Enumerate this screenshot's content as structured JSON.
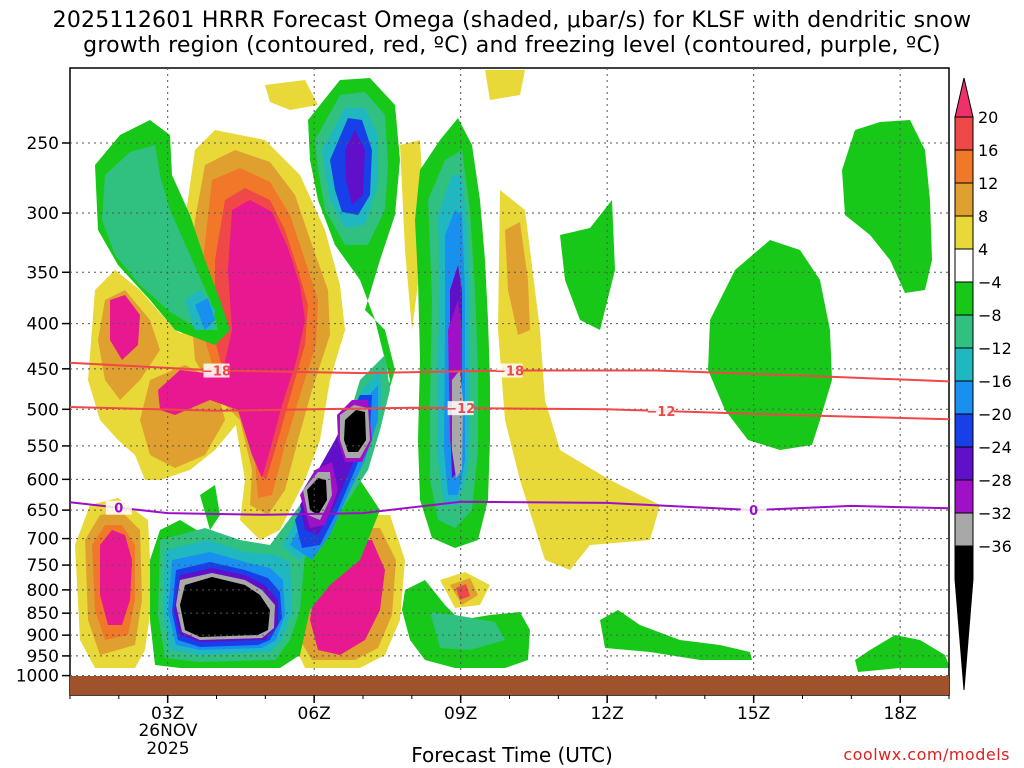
{
  "title_line1": "2025112601 HRRR Forecast Omega (shaded, μbar/s) for KLSF with dendritic snow",
  "title_line2": "growth region (contoured, red, ºC) and freezing level (contoured, purple, ºC)",
  "xlabel": "Forecast Time (UTC)",
  "credit": "coolwx.com/models",
  "date_label": [
    "26NOV",
    "2025"
  ],
  "chart_data": {
    "type": "heatmap",
    "title": "2025112601 HRRR Forecast Omega (shaded, μbar/s) for KLSF with dendritic snow growth region (contoured, red, ºC) and freezing level (contoured, purple, ºC)",
    "xlabel": "Forecast Time (UTC)",
    "ylabel": "",
    "x_ticks": [
      "03Z",
      "06Z",
      "09Z",
      "12Z",
      "15Z",
      "18Z"
    ],
    "x_tick_hours": [
      3,
      6,
      9,
      12,
      15,
      18
    ],
    "xlim": [
      1,
      19
    ],
    "y_ticks": [
      250,
      300,
      350,
      400,
      450,
      500,
      550,
      600,
      650,
      700,
      750,
      800,
      850,
      900,
      950,
      1000
    ],
    "ylim_hPa": [
      1000,
      200
    ],
    "colorbar_ticks": [
      "20",
      "16",
      "12",
      "8",
      "4",
      "−4",
      "−8",
      "−12",
      "−16",
      "−20",
      "−24",
      "−28",
      "−32",
      "−36"
    ],
    "colorbar_colors": [
      "#f0306a",
      "#f04848",
      "#f07828",
      "#e0a030",
      "#e8d838",
      "#ffffff",
      "#18c818",
      "#30c080",
      "#20b8c0",
      "#1890f0",
      "#1840e8",
      "#6010c8",
      "#a010c8",
      "#a8a8a8",
      "#000000",
      "#e81890"
    ],
    "contours": [
      {
        "label": "−18",
        "color": "#f04848",
        "x_hours": [
          1,
          4,
          7,
          10,
          13,
          16,
          19
        ],
        "pressure_hPa": [
          443,
          452,
          455,
          452,
          452,
          458,
          465
        ]
      },
      {
        "label": "−12",
        "color": "#f04848",
        "x_hours": [
          1,
          4,
          6,
          8,
          12,
          16,
          19
        ],
        "pressure_hPa": [
          497,
          502,
          500,
          498,
          500,
          508,
          513
        ]
      },
      {
        "label": "0",
        "color": "#9a10c8",
        "x_hours": [
          1,
          3,
          5,
          7,
          9,
          12,
          15,
          17,
          19
        ],
        "pressure_hPa": [
          637,
          655,
          658,
          655,
          636,
          638,
          650,
          643,
          647
        ]
      }
    ],
    "legend": "right colorbar",
    "grid": true
  }
}
